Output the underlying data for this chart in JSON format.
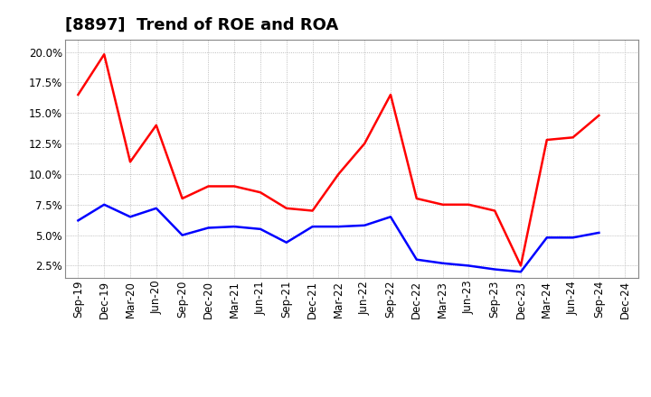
{
  "title": "[8897]  Trend of ROE and ROA",
  "x_labels": [
    "Sep-19",
    "Dec-19",
    "Mar-20",
    "Jun-20",
    "Sep-20",
    "Dec-20",
    "Mar-21",
    "Jun-21",
    "Sep-21",
    "Dec-21",
    "Mar-22",
    "Jun-22",
    "Sep-22",
    "Dec-22",
    "Mar-23",
    "Jun-23",
    "Sep-23",
    "Dec-23",
    "Mar-24",
    "Jun-24",
    "Sep-24",
    "Dec-24"
  ],
  "ROE": [
    16.5,
    19.8,
    11.0,
    14.0,
    8.0,
    9.0,
    9.0,
    8.5,
    7.2,
    7.0,
    10.0,
    12.5,
    16.5,
    8.0,
    7.5,
    7.5,
    7.0,
    2.5,
    12.8,
    13.0,
    14.8,
    null
  ],
  "ROA": [
    6.2,
    7.5,
    6.5,
    7.2,
    5.0,
    5.6,
    5.7,
    5.5,
    4.4,
    5.7,
    5.7,
    5.8,
    6.5,
    3.0,
    2.7,
    2.5,
    2.2,
    2.0,
    4.8,
    4.8,
    5.2,
    null
  ],
  "roe_color": "#FF0000",
  "roa_color": "#0000FF",
  "ylim": [
    1.5,
    21.0
  ],
  "yticks": [
    2.5,
    5.0,
    7.5,
    10.0,
    12.5,
    15.0,
    17.5,
    20.0
  ],
  "background_color": "#FFFFFF",
  "grid_color": "#AAAAAA",
  "title_fontsize": 13,
  "legend_fontsize": 10,
  "axis_fontsize": 8.5,
  "line_width": 1.8
}
